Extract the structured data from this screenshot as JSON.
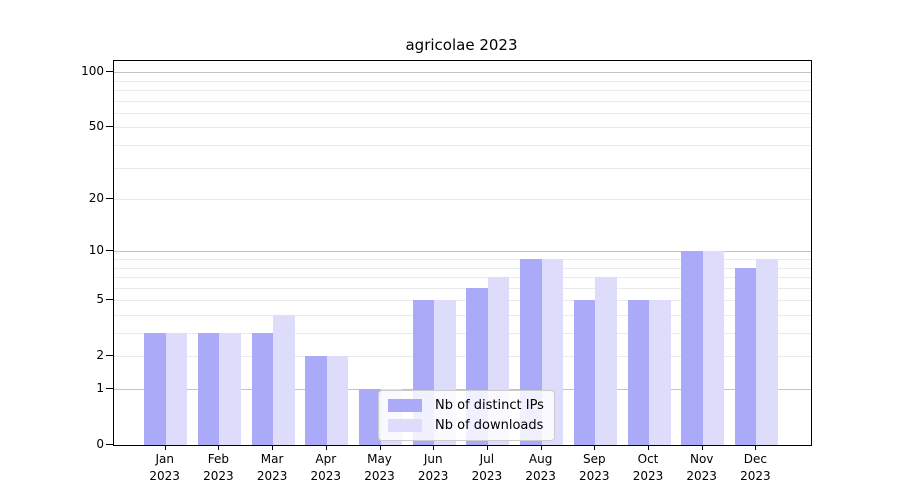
{
  "title": "agricolae 2023",
  "chart_data": {
    "type": "bar",
    "title": "agricolae 2023",
    "xlabel": "",
    "ylabel": "",
    "yscale": "log1p",
    "ylim": [
      0,
      112
    ],
    "yticks": [
      0,
      1,
      2,
      5,
      10,
      20,
      50,
      100
    ],
    "grid": {
      "major": [
        1,
        10,
        100
      ],
      "minor": [
        2,
        3,
        4,
        5,
        6,
        7,
        8,
        9,
        20,
        30,
        40,
        50,
        60,
        70,
        80,
        90
      ],
      "major_color": "#c3c3c3",
      "minor_color": "#eaeaea"
    },
    "categories": [
      {
        "label": "Jan",
        "sub": "2023"
      },
      {
        "label": "Feb",
        "sub": "2023"
      },
      {
        "label": "Mar",
        "sub": "2023"
      },
      {
        "label": "Apr",
        "sub": "2023"
      },
      {
        "label": "May",
        "sub": "2023"
      },
      {
        "label": "Jun",
        "sub": "2023"
      },
      {
        "label": "Jul",
        "sub": "2023"
      },
      {
        "label": "Aug",
        "sub": "2023"
      },
      {
        "label": "Sep",
        "sub": "2023"
      },
      {
        "label": "Oct",
        "sub": "2023"
      },
      {
        "label": "Nov",
        "sub": "2023"
      },
      {
        "label": "Dec",
        "sub": "2023"
      }
    ],
    "series": [
      {
        "name": "Nb of distinct IPs",
        "color": "#aaaaf9",
        "values": [
          3,
          3,
          3,
          2,
          1,
          5,
          6,
          9,
          5,
          5,
          10,
          8
        ]
      },
      {
        "name": "Nb of downloads",
        "color": "#ddddfb",
        "values": [
          3,
          3,
          4,
          2,
          1,
          5,
          7,
          9,
          7,
          5,
          10,
          9
        ]
      }
    ],
    "legend": {
      "position": "bottom-center-inside"
    }
  }
}
